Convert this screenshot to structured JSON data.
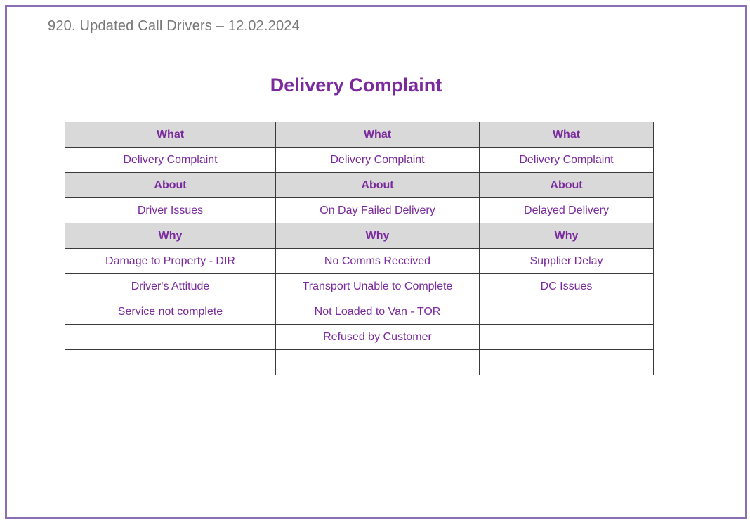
{
  "document": {
    "header": "920. Updated Call Drivers – 12.02.2024",
    "title": "Delivery Complaint"
  },
  "table": {
    "columns": [
      {
        "what_label": "What",
        "what_value": "Delivery Complaint",
        "about_label": "About",
        "about_value": "Driver Issues",
        "why_label": "Why",
        "why_values": [
          "Damage to Property  - DIR",
          "Driver's Attitude",
          "Service not complete",
          "",
          ""
        ]
      },
      {
        "what_label": "What",
        "what_value": "Delivery Complaint",
        "about_label": "About",
        "about_value": "On Day Failed Delivery",
        "why_label": "Why",
        "why_values": [
          "No Comms Received",
          "Transport Unable to Complete",
          "Not Loaded to Van  - TOR",
          "Refused by Customer",
          ""
        ]
      },
      {
        "what_label": "What",
        "what_value": "Delivery Complaint",
        "about_label": "About",
        "about_value": "Delayed Delivery",
        "why_label": "Why",
        "why_values": [
          "Supplier Delay",
          "DC Issues",
          "",
          "",
          ""
        ]
      }
    ]
  },
  "colors": {
    "text_purple": "#7a2a9c",
    "header_fill": "#d9d9d9",
    "frame_border": "#8a70b0"
  }
}
